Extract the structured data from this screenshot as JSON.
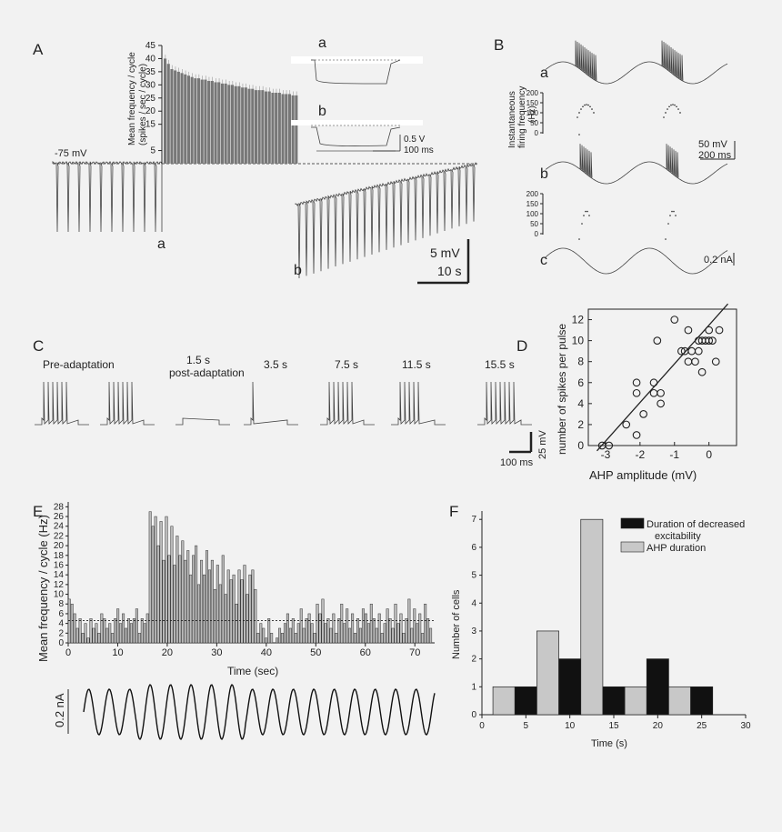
{
  "panels": {
    "A": {
      "label": "A",
      "rest_label": "-75 mV",
      "trace_a_label": "a",
      "trace_b_label": "b",
      "scale_mv": "5 mV",
      "scale_s": "10 s",
      "inset_a_label": "a",
      "inset_b_label": "b",
      "inset_scale_v": "0.5 V",
      "inset_scale_ms": "100 ms"
    },
    "B": {
      "label": "B",
      "trace_a_label": "a",
      "trace_b_label": "b",
      "trace_c_label": "c",
      "ifr_ylabel_1": "Instantaneous",
      "ifr_ylabel_2": "firing frequency",
      "ifr_ylabel_3": "(Hz)",
      "ifr_ticks": [
        "200",
        "150",
        "100",
        "50",
        "0"
      ],
      "scale_mv": "50 mV",
      "scale_ms": "200 ms",
      "current_label": "0.2 nA"
    },
    "C": {
      "label": "C",
      "titles": [
        "Pre-adaptation",
        "1.5 s",
        "post-adaptation",
        "3.5 s",
        "7.5 s",
        "11.5 s",
        "15.5 s"
      ],
      "scale_mv": "25 mV",
      "scale_ms": "100 ms"
    },
    "D": {
      "label": "D"
    },
    "E": {
      "label": "E",
      "current_label": "0.2 nA"
    },
    "F": {
      "label": "F"
    }
  },
  "chart_data": [
    {
      "id": "A-inset-bar",
      "type": "bar",
      "ylabel": "Mean frequency / cycle (spikes / sec / cycle)",
      "ylim": [
        0,
        45
      ],
      "yticks": [
        5,
        15,
        20,
        25,
        30,
        35,
        40,
        45
      ],
      "values": [
        40,
        38,
        36,
        35.5,
        35,
        34.5,
        34,
        33.5,
        33,
        32.5,
        32.5,
        32,
        32,
        31.5,
        31.5,
        31,
        31,
        30.5,
        30.5,
        30,
        30,
        29.5,
        29.5,
        29,
        29,
        28.5,
        28.5,
        28,
        28,
        28,
        27.5,
        27.5,
        27,
        27,
        27,
        26.5,
        26.5,
        26.5,
        26,
        26
      ]
    },
    {
      "id": "D",
      "type": "scatter",
      "xlabel": "AHP amplitude (mV)",
      "ylabel": "number of spikes per pulse",
      "xlim": [
        -3.5,
        0.8
      ],
      "ylim": [
        0,
        13
      ],
      "xticks": [
        -3,
        -2,
        -1,
        0
      ],
      "yticks": [
        0,
        2,
        4,
        6,
        8,
        10,
        12
      ],
      "x": [
        -3.1,
        -2.9,
        -2.4,
        -2.1,
        -2.1,
        -2.1,
        -1.9,
        -1.6,
        -1.6,
        -1.5,
        -1.4,
        -1.4,
        -1.0,
        -0.8,
        -0.7,
        -0.6,
        -0.6,
        -0.5,
        -0.4,
        -0.3,
        -0.3,
        -0.2,
        -0.2,
        -0.1,
        0.0,
        0.0,
        0.1,
        0.2,
        0.3
      ],
      "y": [
        0,
        0,
        2,
        1,
        5,
        6,
        3,
        5,
        6,
        10,
        4,
        5,
        12,
        9,
        9,
        8,
        11,
        9,
        8,
        10,
        9,
        7,
        10,
        10,
        11,
        10,
        10,
        8,
        11
      ],
      "fit_line": {
        "x": [
          -3.25,
          0.55
        ],
        "y": [
          -0.5,
          13.5
        ]
      }
    },
    {
      "id": "E",
      "type": "bar",
      "xlabel": "Time (sec)",
      "ylabel": "Mean frequency / cycle (Hz)",
      "xlim": [
        0,
        74
      ],
      "ylim": [
        0,
        29
      ],
      "xticks": [
        0,
        10,
        20,
        30,
        40,
        50,
        60,
        70
      ],
      "yticks": [
        0,
        2,
        4,
        6,
        8,
        10,
        12,
        14,
        16,
        18,
        20,
        22,
        24,
        26,
        28
      ],
      "baseline": 4.6,
      "values": [
        9,
        8,
        6,
        3,
        5,
        2,
        4,
        1,
        5,
        3,
        4,
        2,
        6,
        5,
        3,
        4,
        2,
        5,
        7,
        4,
        6,
        3,
        5,
        4,
        5,
        7,
        2,
        5,
        4,
        6,
        27,
        24,
        26,
        20,
        25,
        17,
        26,
        18,
        24,
        16,
        22,
        18,
        21,
        17,
        19,
        14,
        18,
        20,
        12,
        17,
        14,
        19,
        15,
        17,
        11,
        16,
        12,
        18,
        10,
        15,
        13,
        14,
        8,
        15,
        13,
        16,
        10,
        14,
        15,
        11,
        2,
        4,
        3,
        1,
        5,
        2,
        0,
        1,
        3,
        2,
        4,
        6,
        3,
        5,
        2,
        4,
        7,
        3,
        5,
        6,
        4,
        2,
        8,
        6,
        9,
        4,
        5,
        3,
        6,
        2,
        5,
        8,
        4,
        7,
        3,
        6,
        2,
        5,
        3,
        7,
        6,
        4,
        8,
        5,
        3,
        6,
        2,
        4,
        7,
        5,
        3,
        8,
        4,
        6,
        2,
        5,
        9,
        3,
        7,
        4,
        6,
        2,
        8,
        5,
        3
      ]
    },
    {
      "id": "F",
      "type": "bar",
      "xlabel": "Time (s)",
      "ylabel": "Number of cells",
      "xlim": [
        0,
        30
      ],
      "ylim": [
        0,
        7.3
      ],
      "xticks": [
        0,
        5,
        10,
        15,
        20,
        25,
        30
      ],
      "yticks": [
        0,
        1,
        2,
        3,
        4,
        5,
        6,
        7
      ],
      "categories": [
        3.75,
        8.75,
        13.75,
        18.75,
        23.75
      ],
      "bar_width": 2.5,
      "series": [
        {
          "name": "Duration of decreased excitability",
          "color": "#111111",
          "values": [
            1,
            2,
            1,
            2,
            1
          ]
        },
        {
          "name": "AHP duration",
          "color": "#c8c8c8",
          "values": [
            1,
            3,
            7,
            1,
            1
          ]
        }
      ],
      "legend_extra_line": "excitability",
      "legend_names": [
        "Duration of decreased",
        "AHP duration"
      ]
    }
  ]
}
